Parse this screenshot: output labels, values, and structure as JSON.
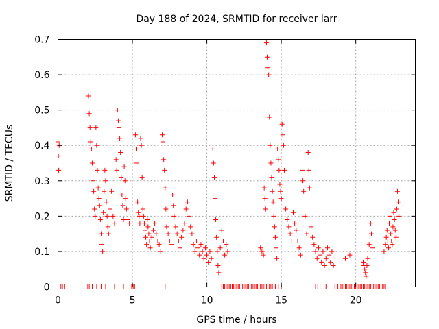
{
  "chart_data": {
    "type": "scatter",
    "title": "Day 188 of 2024, SRMTID for receiver larr",
    "xlabel": "GPS time / hours",
    "ylabel": "SRMTID / TECUs",
    "xlim": [
      0,
      24
    ],
    "ylim": [
      0,
      0.7
    ],
    "x_ticks": [
      0,
      5,
      10,
      15,
      20
    ],
    "x_tick_labels": [
      "0",
      "5",
      "10",
      "15",
      "20"
    ],
    "y_ticks": [
      0,
      0.1,
      0.2,
      0.3,
      0.4,
      0.5,
      0.6,
      0.7
    ],
    "y_tick_labels": [
      "0",
      "0.1",
      "0.2",
      "0.3",
      "0.4",
      "0.5",
      "0.6",
      "0.7"
    ],
    "grid": true,
    "marker": "+",
    "color": "#ff0000",
    "series": [
      {
        "name": "SRMTID",
        "points": [
          [
            0.0,
            0.41
          ],
          [
            0.03,
            0.37
          ],
          [
            0.05,
            0.33
          ],
          [
            0.08,
            0.4
          ],
          [
            2.05,
            0.54
          ],
          [
            2.1,
            0.49
          ],
          [
            2.15,
            0.45
          ],
          [
            2.2,
            0.41
          ],
          [
            2.25,
            0.39
          ],
          [
            2.3,
            0.35
          ],
          [
            2.35,
            0.3
          ],
          [
            2.4,
            0.27
          ],
          [
            2.45,
            0.22
          ],
          [
            2.5,
            0.2
          ],
          [
            2.55,
            0.45
          ],
          [
            2.6,
            0.4
          ],
          [
            2.65,
            0.33
          ],
          [
            2.7,
            0.28
          ],
          [
            2.75,
            0.25
          ],
          [
            2.8,
            0.23
          ],
          [
            2.85,
            0.19
          ],
          [
            2.9,
            0.15
          ],
          [
            2.95,
            0.12
          ],
          [
            3.0,
            0.1
          ],
          [
            3.05,
            0.21
          ],
          [
            3.1,
            0.27
          ],
          [
            3.15,
            0.33
          ],
          [
            3.2,
            0.3
          ],
          [
            3.25,
            0.24
          ],
          [
            3.3,
            0.2
          ],
          [
            3.35,
            0.17
          ],
          [
            3.4,
            0.15
          ],
          [
            3.5,
            0.22
          ],
          [
            3.6,
            0.27
          ],
          [
            3.7,
            0.2
          ],
          [
            3.8,
            0.18
          ],
          [
            3.9,
            0.36
          ],
          [
            3.95,
            0.33
          ],
          [
            4.0,
            0.5
          ],
          [
            4.05,
            0.47
          ],
          [
            4.1,
            0.45
          ],
          [
            4.15,
            0.42
          ],
          [
            4.2,
            0.38
          ],
          [
            4.25,
            0.31
          ],
          [
            4.3,
            0.26
          ],
          [
            4.35,
            0.23
          ],
          [
            4.4,
            0.19
          ],
          [
            4.45,
            0.34
          ],
          [
            4.5,
            0.3
          ],
          [
            4.55,
            0.25
          ],
          [
            4.6,
            0.22
          ],
          [
            4.7,
            0.19
          ],
          [
            4.8,
            0.18
          ],
          [
            5.2,
            0.43
          ],
          [
            5.25,
            0.39
          ],
          [
            5.3,
            0.35
          ],
          [
            5.35,
            0.24
          ],
          [
            5.4,
            0.21
          ],
          [
            5.45,
            0.2
          ],
          [
            5.5,
            0.18
          ],
          [
            5.55,
            0.42
          ],
          [
            5.6,
            0.4
          ],
          [
            5.65,
            0.31
          ],
          [
            5.7,
            0.22
          ],
          [
            5.75,
            0.2
          ],
          [
            5.8,
            0.18
          ],
          [
            5.85,
            0.16
          ],
          [
            5.9,
            0.14
          ],
          [
            5.95,
            0.12
          ],
          [
            6.0,
            0.19
          ],
          [
            6.05,
            0.17
          ],
          [
            6.1,
            0.15
          ],
          [
            6.15,
            0.13
          ],
          [
            6.2,
            0.11
          ],
          [
            6.3,
            0.14
          ],
          [
            6.4,
            0.16
          ],
          [
            6.5,
            0.18
          ],
          [
            6.6,
            0.15
          ],
          [
            6.7,
            0.13
          ],
          [
            6.8,
            0.12
          ],
          [
            6.9,
            0.1
          ],
          [
            7.0,
            0.43
          ],
          [
            7.05,
            0.41
          ],
          [
            7.1,
            0.36
          ],
          [
            7.15,
            0.33
          ],
          [
            7.2,
            0.28
          ],
          [
            7.25,
            0.22
          ],
          [
            7.3,
            0.17
          ],
          [
            7.4,
            0.15
          ],
          [
            7.5,
            0.13
          ],
          [
            7.6,
            0.12
          ],
          [
            7.7,
            0.26
          ],
          [
            7.75,
            0.23
          ],
          [
            7.8,
            0.2
          ],
          [
            7.9,
            0.17
          ],
          [
            8.0,
            0.15
          ],
          [
            8.1,
            0.13
          ],
          [
            8.2,
            0.11
          ],
          [
            8.3,
            0.14
          ],
          [
            8.4,
            0.16
          ],
          [
            8.5,
            0.18
          ],
          [
            8.6,
            0.22
          ],
          [
            8.7,
            0.24
          ],
          [
            8.8,
            0.2
          ],
          [
            8.9,
            0.17
          ],
          [
            9.0,
            0.15
          ],
          [
            9.1,
            0.12
          ],
          [
            9.2,
            0.1
          ],
          [
            9.3,
            0.13
          ],
          [
            9.4,
            0.11
          ],
          [
            9.5,
            0.09
          ],
          [
            9.6,
            0.12
          ],
          [
            9.7,
            0.1
          ],
          [
            9.8,
            0.08
          ],
          [
            9.9,
            0.11
          ],
          [
            10.0,
            0.09
          ],
          [
            10.1,
            0.07
          ],
          [
            10.2,
            0.1
          ],
          [
            10.3,
            0.08
          ],
          [
            10.4,
            0.39
          ],
          [
            10.45,
            0.35
          ],
          [
            10.5,
            0.31
          ],
          [
            10.55,
            0.25
          ],
          [
            10.6,
            0.19
          ],
          [
            10.65,
            0.14
          ],
          [
            10.7,
            0.1
          ],
          [
            10.75,
            0.06
          ],
          [
            10.8,
            0.04
          ],
          [
            10.9,
            0.11
          ],
          [
            11.0,
            0.16
          ],
          [
            11.1,
            0.13
          ],
          [
            11.2,
            0.09
          ],
          [
            11.3,
            0.12
          ],
          [
            11.4,
            0.1
          ],
          [
            13.5,
            0.13
          ],
          [
            13.6,
            0.11
          ],
          [
            13.7,
            0.1
          ],
          [
            13.8,
            0.09
          ],
          [
            13.85,
            0.28
          ],
          [
            13.9,
            0.25
          ],
          [
            13.95,
            0.22
          ],
          [
            14.0,
            0.69
          ],
          [
            14.05,
            0.65
          ],
          [
            14.1,
            0.62
          ],
          [
            14.15,
            0.6
          ],
          [
            14.2,
            0.48
          ],
          [
            14.25,
            0.4
          ],
          [
            14.3,
            0.35
          ],
          [
            14.35,
            0.31
          ],
          [
            14.4,
            0.27
          ],
          [
            14.45,
            0.24
          ],
          [
            14.5,
            0.2
          ],
          [
            14.55,
            0.17
          ],
          [
            14.6,
            0.14
          ],
          [
            14.65,
            0.11
          ],
          [
            14.7,
            0.08
          ],
          [
            14.75,
            0.39
          ],
          [
            14.8,
            0.36
          ],
          [
            14.85,
            0.33
          ],
          [
            14.9,
            0.29
          ],
          [
            14.95,
            0.27
          ],
          [
            15.0,
            0.25
          ],
          [
            15.05,
            0.46
          ],
          [
            15.1,
            0.43
          ],
          [
            15.15,
            0.4
          ],
          [
            15.2,
            0.33
          ],
          [
            15.3,
            0.22
          ],
          [
            15.4,
            0.19
          ],
          [
            15.5,
            0.17
          ],
          [
            15.6,
            0.15
          ],
          [
            15.7,
            0.13
          ],
          [
            15.8,
            0.21
          ],
          [
            15.9,
            0.18
          ],
          [
            16.0,
            0.16
          ],
          [
            16.1,
            0.13
          ],
          [
            16.2,
            0.11
          ],
          [
            16.3,
            0.09
          ],
          [
            16.4,
            0.33
          ],
          [
            16.45,
            0.3
          ],
          [
            16.5,
            0.27
          ],
          [
            16.6,
            0.2
          ],
          [
            16.7,
            0.15
          ],
          [
            16.8,
            0.38
          ],
          [
            16.85,
            0.33
          ],
          [
            16.9,
            0.28
          ],
          [
            17.0,
            0.17
          ],
          [
            17.1,
            0.14
          ],
          [
            17.2,
            0.12
          ],
          [
            17.3,
            0.1
          ],
          [
            17.4,
            0.08
          ],
          [
            17.5,
            0.11
          ],
          [
            17.6,
            0.09
          ],
          [
            17.7,
            0.07
          ],
          [
            17.8,
            0.1
          ],
          [
            17.9,
            0.06
          ],
          [
            18.0,
            0.08
          ],
          [
            18.1,
            0.11
          ],
          [
            18.2,
            0.09
          ],
          [
            18.3,
            0.07
          ],
          [
            18.4,
            0.1
          ],
          [
            18.5,
            0.06
          ],
          [
            19.3,
            0.08
          ],
          [
            19.6,
            0.09
          ],
          [
            20.5,
            0.07
          ],
          [
            20.55,
            0.06
          ],
          [
            20.6,
            0.05
          ],
          [
            20.65,
            0.04
          ],
          [
            20.7,
            0.03
          ],
          [
            20.75,
            0.06
          ],
          [
            20.8,
            0.08
          ],
          [
            20.9,
            0.12
          ],
          [
            21.0,
            0.18
          ],
          [
            21.05,
            0.15
          ],
          [
            21.1,
            0.11
          ],
          [
            21.9,
            0.1
          ],
          [
            22.0,
            0.12
          ],
          [
            22.05,
            0.14
          ],
          [
            22.1,
            0.16
          ],
          [
            22.15,
            0.13
          ],
          [
            22.2,
            0.11
          ],
          [
            22.25,
            0.18
          ],
          [
            22.3,
            0.2
          ],
          [
            22.35,
            0.15
          ],
          [
            22.4,
            0.13
          ],
          [
            22.45,
            0.12
          ],
          [
            22.5,
            0.17
          ],
          [
            22.55,
            0.21
          ],
          [
            22.6,
            0.19
          ],
          [
            22.65,
            0.16
          ],
          [
            22.7,
            0.14
          ],
          [
            22.75,
            0.22
          ],
          [
            22.8,
            0.27
          ],
          [
            22.85,
            0.24
          ],
          [
            22.9,
            0.2
          ]
        ]
      }
    ],
    "zero_points_x": [
      0.2,
      0.3,
      0.45,
      0.6,
      2.0,
      2.1,
      2.3,
      2.6,
      2.9,
      3.2,
      3.5,
      3.8,
      4.1,
      4.4,
      4.7,
      4.95,
      5.05,
      5.15,
      7.2,
      11.0,
      11.1,
      11.2,
      11.3,
      11.4,
      11.5,
      11.6,
      11.7,
      11.8,
      11.9,
      12.0,
      12.1,
      12.2,
      12.3,
      12.4,
      12.5,
      12.6,
      12.7,
      12.8,
      12.9,
      13.0,
      13.1,
      13.2,
      13.3,
      13.4,
      13.5,
      13.6,
      13.7,
      13.8,
      13.9,
      14.0,
      14.1,
      14.2,
      14.3,
      14.4,
      14.6,
      14.8,
      15.0,
      17.3,
      17.45,
      17.6,
      18.0,
      18.6,
      18.8,
      19.0,
      19.1,
      19.2,
      19.3,
      19.4,
      19.5,
      19.6,
      19.7,
      19.8,
      19.9,
      20.0,
      20.1,
      20.2,
      20.3,
      20.4,
      20.5,
      20.6,
      20.7,
      20.8,
      20.9,
      21.0,
      21.1,
      21.2,
      21.3,
      21.4,
      21.5,
      21.6,
      21.7,
      21.8,
      21.9,
      22.0
    ]
  }
}
